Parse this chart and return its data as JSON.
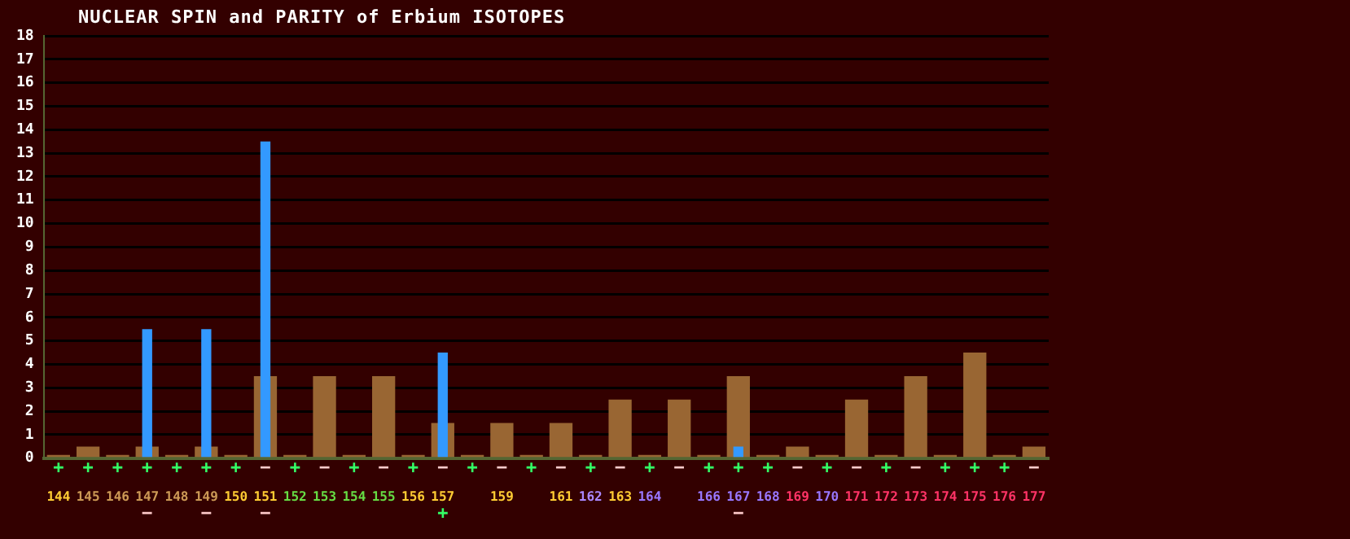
{
  "chart_data": {
    "type": "bar",
    "title": "NUCLEAR SPIN and PARITY of Erbium ISOTOPES",
    "categories": [
      "144",
      "145",
      "146",
      "147",
      "148",
      "149",
      "150",
      "151",
      "152",
      "153",
      "154",
      "155",
      "156",
      "157",
      null,
      "159",
      null,
      "161",
      "162",
      "163",
      "164",
      null,
      "166",
      "167",
      "168",
      "169",
      "170",
      "171",
      "172",
      "173",
      "174",
      "175",
      "176",
      "177"
    ],
    "series": [
      {
        "color": "#996633",
        "values": [
          0,
          0.5,
          0,
          0.5,
          0,
          0.5,
          0,
          3.5,
          0,
          3.5,
          0,
          3.5,
          0,
          1.5,
          0,
          1.5,
          0,
          1.5,
          0,
          2.5,
          0,
          2.5,
          0,
          3.5,
          0,
          0.5,
          0,
          2.5,
          0,
          3.5,
          0,
          4.5,
          0,
          0.5
        ],
        "value_labels": [
          "+",
          "+",
          "+",
          "+",
          "+",
          "+",
          "+",
          "−",
          "+",
          "−",
          "+",
          "−",
          "+",
          "−",
          "+",
          "−",
          "+",
          "−",
          "+",
          "−",
          "+",
          "−",
          "+",
          "+",
          "+",
          "−",
          "+",
          "−",
          "+",
          "−",
          "+",
          "+",
          "+",
          "−"
        ]
      },
      {
        "color": "#3399ff",
        "values": [
          null,
          null,
          null,
          5.5,
          null,
          5.5,
          null,
          13.5,
          null,
          null,
          null,
          null,
          null,
          4.5,
          null,
          null,
          null,
          null,
          null,
          null,
          null,
          null,
          null,
          0.5,
          null,
          null,
          null,
          null,
          null,
          null,
          null,
          null,
          null,
          null
        ],
        "value_labels": [
          null,
          null,
          null,
          "−",
          null,
          "−",
          null,
          "−",
          null,
          null,
          null,
          null,
          null,
          "+",
          null,
          null,
          null,
          null,
          null,
          null,
          null,
          null,
          null,
          "−",
          null,
          null,
          null,
          null,
          null,
          null,
          null,
          null,
          null,
          null
        ]
      }
    ],
    "ylim": [
      0,
      18
    ],
    "yticks": [
      0,
      1,
      2,
      3,
      4,
      5,
      6,
      7,
      8,
      9,
      10,
      11,
      12,
      13,
      14,
      15,
      16,
      17,
      18
    ],
    "grid": "y",
    "legend": false
  }
}
